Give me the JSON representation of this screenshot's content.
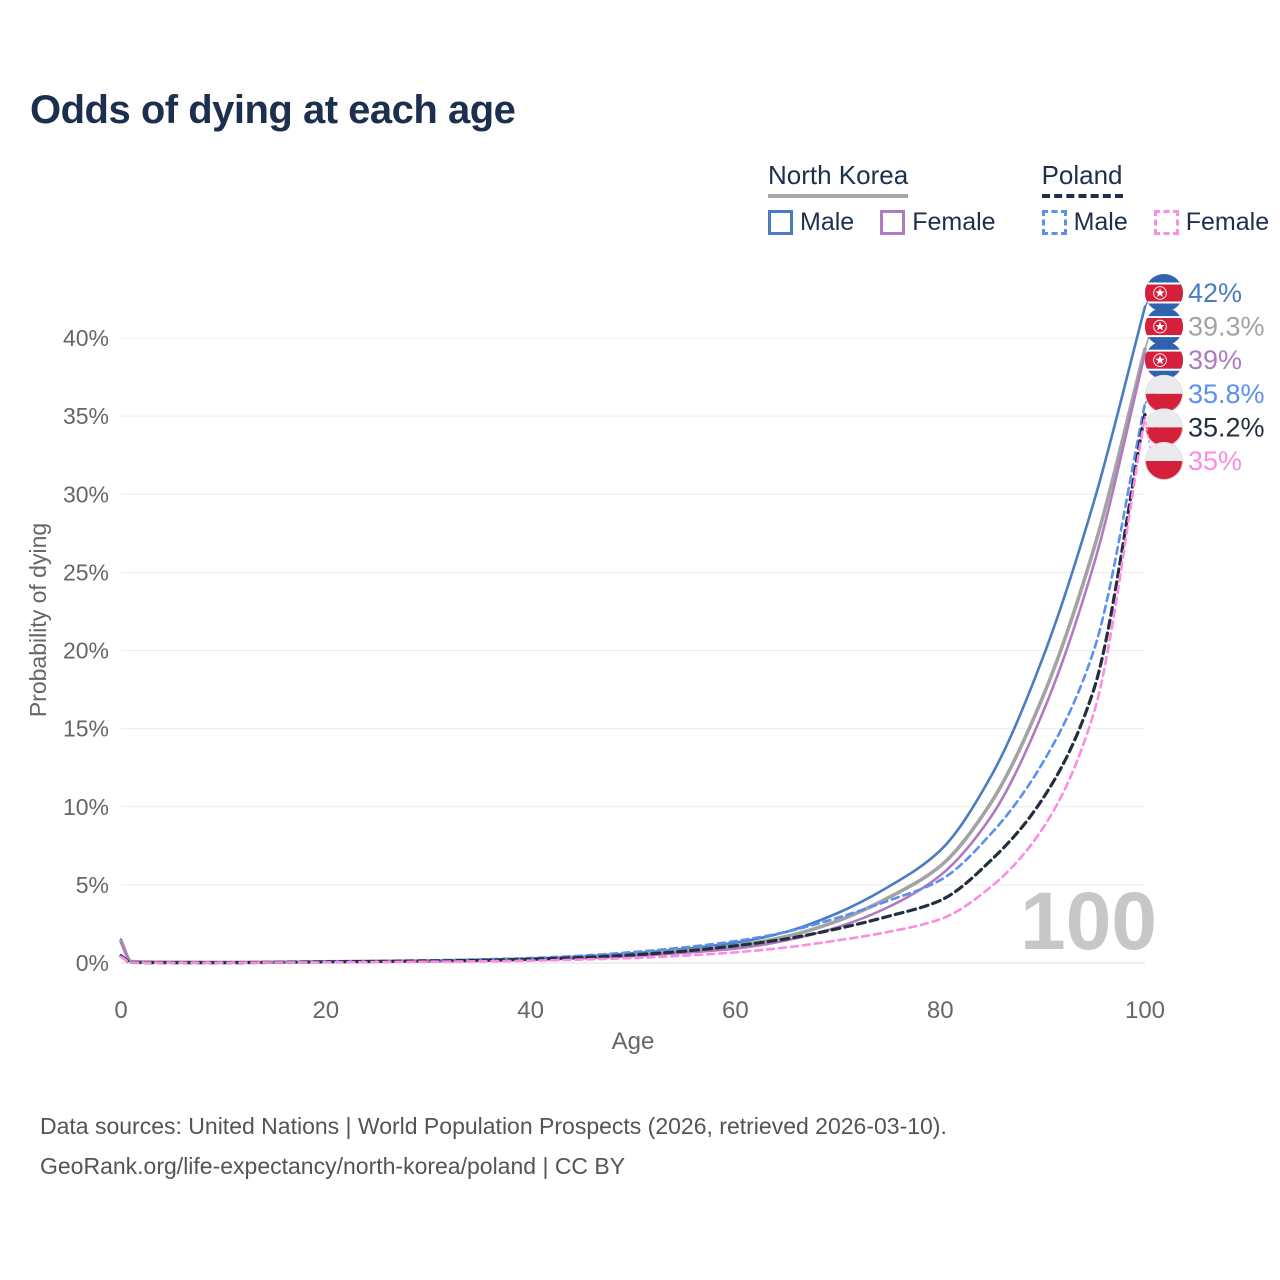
{
  "title": "Odds of dying at each age",
  "watermark_age_label": "100",
  "legend": {
    "groups": [
      {
        "id": "north-korea",
        "name": "North Korea",
        "line_style": "solid",
        "underline_color": "#a6a6a6",
        "items": [
          {
            "id": "nk-male",
            "label": "Male",
            "color": "#4a7cc0"
          },
          {
            "id": "nk-female",
            "label": "Female",
            "color": "#b07ac0"
          }
        ]
      },
      {
        "id": "poland",
        "name": "Poland",
        "line_style": "dashed",
        "underline_color": "#1d2f4e",
        "items": [
          {
            "id": "pl-male",
            "label": "Male",
            "color": "#5b8ff2"
          },
          {
            "id": "pl-female",
            "label": "Female",
            "color": "#fb8ce2"
          }
        ]
      }
    ]
  },
  "chart_data": {
    "type": "line",
    "title": "Odds of dying at each age",
    "xlabel": "Age",
    "ylabel": "Probability of dying",
    "xlim": [
      0,
      100
    ],
    "ylim_percent": [
      0,
      43
    ],
    "grid": true,
    "legend_position": "top-right",
    "x_ticks": [
      0,
      20,
      40,
      60,
      80,
      100
    ],
    "y_ticks": [
      {
        "value": 0,
        "label": "0%"
      },
      {
        "value": 5,
        "label": "5%"
      },
      {
        "value": 10,
        "label": "10%"
      },
      {
        "value": 15,
        "label": "15%"
      },
      {
        "value": 20,
        "label": "20%"
      },
      {
        "value": 25,
        "label": "25%"
      },
      {
        "value": 30,
        "label": "30%"
      },
      {
        "value": 35,
        "label": "35%"
      },
      {
        "value": 40,
        "label": "40%"
      }
    ],
    "ages": [
      0,
      1,
      5,
      10,
      15,
      20,
      25,
      30,
      35,
      40,
      45,
      50,
      55,
      60,
      65,
      70,
      75,
      80,
      85,
      90,
      95,
      100
    ],
    "series": [
      {
        "id": "nk-male",
        "name": "North Korea Male",
        "flag": "north-korea",
        "color": "#4a7cc0",
        "dash": null,
        "width": 2.6,
        "end_label": "42%",
        "end_value": 42,
        "values": [
          1.5,
          0.1,
          0.05,
          0.04,
          0.06,
          0.09,
          0.12,
          0.15,
          0.2,
          0.28,
          0.42,
          0.62,
          0.9,
          1.3,
          2.0,
          3.2,
          4.9,
          7.2,
          12.0,
          19.5,
          29.5,
          42
        ]
      },
      {
        "id": "nk-both",
        "name": "North Korea Both sexes",
        "flag": "north-korea",
        "color": "#a3a3a3",
        "dash": null,
        "width": 3.6,
        "end_label": "39.3%",
        "end_value": 39.3,
        "values": [
          1.4,
          0.09,
          0.05,
          0.04,
          0.05,
          0.08,
          0.1,
          0.13,
          0.17,
          0.24,
          0.35,
          0.52,
          0.78,
          1.1,
          1.7,
          2.7,
          4.2,
          6.2,
          10.3,
          17.0,
          26.5,
          39.3
        ]
      },
      {
        "id": "nk-female",
        "name": "North Korea Female",
        "flag": "north-korea",
        "color": "#b07ac0",
        "dash": null,
        "width": 2.6,
        "end_label": "39%",
        "end_value": 39,
        "values": [
          1.3,
          0.08,
          0.04,
          0.03,
          0.05,
          0.07,
          0.09,
          0.11,
          0.15,
          0.21,
          0.3,
          0.44,
          0.65,
          0.92,
          1.45,
          2.3,
          3.6,
          5.6,
          9.4,
          16.0,
          25.5,
          39.0
        ]
      },
      {
        "id": "pl-male",
        "name": "Poland Male",
        "flag": "poland",
        "color": "#5b8ff2",
        "dash": "7 5",
        "width": 2.6,
        "end_label": "35.8%",
        "end_value": 35.8,
        "values": [
          0.5,
          0.04,
          0.02,
          0.02,
          0.05,
          0.1,
          0.13,
          0.17,
          0.23,
          0.32,
          0.47,
          0.7,
          1.0,
          1.4,
          2.0,
          2.9,
          4.0,
          5.3,
          8.3,
          12.8,
          20.0,
          35.8
        ]
      },
      {
        "id": "pl-both",
        "name": "Poland Both sexes",
        "flag": "poland",
        "color": "#232f3e",
        "dash": "8 5",
        "width": 3.2,
        "end_label": "35.2%",
        "end_value": 35.2,
        "values": [
          0.45,
          0.035,
          0.02,
          0.02,
          0.04,
          0.07,
          0.1,
          0.13,
          0.17,
          0.24,
          0.35,
          0.52,
          0.76,
          1.1,
          1.55,
          2.2,
          3.0,
          4.0,
          6.6,
          10.5,
          17.5,
          35.2
        ]
      },
      {
        "id": "pl-female",
        "name": "Poland Female",
        "flag": "poland",
        "color": "#fb8ce2",
        "dash": "7 5",
        "width": 2.6,
        "end_label": "35%",
        "end_value": 35,
        "values": [
          0.4,
          0.03,
          0.015,
          0.015,
          0.03,
          0.04,
          0.06,
          0.08,
          0.11,
          0.15,
          0.22,
          0.32,
          0.47,
          0.68,
          1.0,
          1.45,
          2.0,
          2.8,
          4.9,
          8.6,
          16.0,
          35.0
        ]
      }
    ]
  },
  "colors": {
    "title_text": "#1d2f4e",
    "axis_text": "#666666",
    "gridline": "#ececec",
    "baseline": "#dedede",
    "watermark": "#c7c7ca",
    "footer_text": "#545454",
    "nk_flag_blue": "#2f63ad",
    "flag_red": "#d5203b",
    "poland_flag_white": "#ebebed"
  },
  "footer": {
    "line1": "Data sources: United Nations | World Population Prospects (2026, retrieved 2026-03-10).",
    "line2": "GeoRank.org/life-expectancy/north-korea/poland | CC BY"
  }
}
